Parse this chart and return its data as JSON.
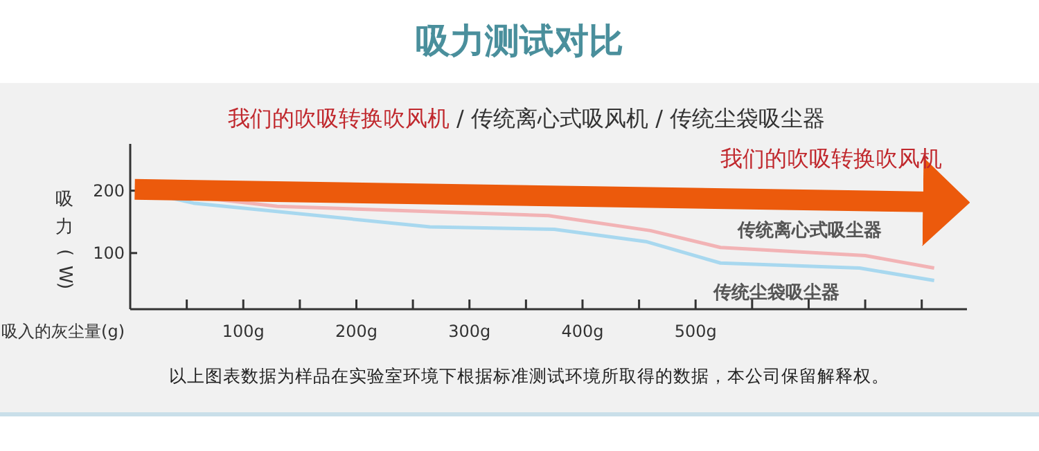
{
  "chart_data": {
    "type": "line",
    "title": "吸力测试对比",
    "subtitle": "我们的吹吸转换吹风机 / 传统离心式吸风机 / 传统尘袋吸尘器",
    "xlabel": "吸入的灰尘量(g)",
    "ylabel": "吸力(W)",
    "xlim": [
      0,
      740
    ],
    "ylim": [
      10,
      275
    ],
    "xticks": [
      {
        "value": 50,
        "label": null
      },
      {
        "value": 100,
        "label": "100g"
      },
      {
        "value": 150,
        "label": null
      },
      {
        "value": 200,
        "label": "200g"
      },
      {
        "value": 250,
        "label": null
      },
      {
        "value": 300,
        "label": "300g"
      },
      {
        "value": 350,
        "label": null
      },
      {
        "value": 400,
        "label": "400g"
      },
      {
        "value": 450,
        "label": null
      },
      {
        "value": 500,
        "label": "500g"
      },
      {
        "value": 550,
        "label": null
      },
      {
        "value": 600,
        "label": null
      },
      {
        "value": 650,
        "label": null
      },
      {
        "value": 700,
        "label": null
      }
    ],
    "yticks": [
      100,
      200
    ],
    "grid": false,
    "marker": "none",
    "series": [
      {
        "name": "传统尘袋吸尘器",
        "color": "#a8d8ef",
        "x": [
          7,
          56,
          265,
          375,
          457,
          522,
          645,
          711
        ],
        "values": [
          200,
          180,
          142,
          138,
          118,
          84,
          76,
          56
        ]
      },
      {
        "name": "传统离心式吸尘器",
        "color": "#f2b3b5",
        "x": [
          7,
          130,
          370,
          460,
          522,
          650,
          711
        ],
        "values": [
          200,
          175,
          160,
          136,
          109,
          96,
          76
        ]
      },
      {
        "name": "我们的吹吸转换吹风机",
        "color": "#ec5a0c",
        "x": [
          4,
          706
        ],
        "values": [
          202,
          182
        ]
      }
    ],
    "annotations": [
      "以上图表数据为样品在实验室环境下根据标准测试环境所取得的数据，本公司保留解释权。"
    ]
  }
}
